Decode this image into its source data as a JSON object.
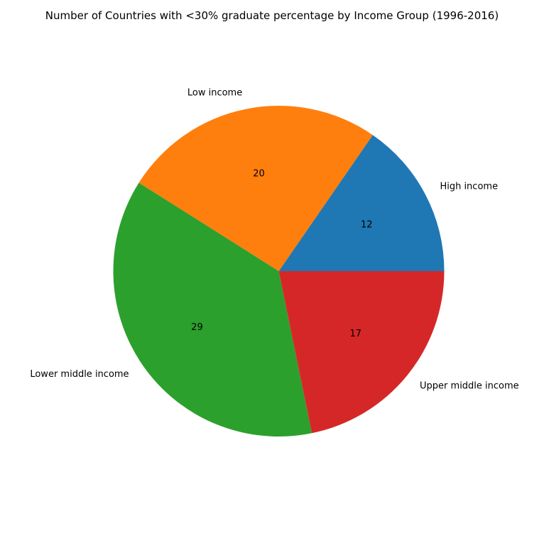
{
  "chart_data": {
    "type": "pie",
    "title": "Number of Countries with <30% graduate percentage by Income Group (1996-2016)",
    "categories": [
      "High income",
      "Low income",
      "Lower middle income",
      "Upper middle income"
    ],
    "values": [
      12,
      20,
      29,
      17
    ],
    "value_labels": [
      "12",
      "20",
      "29",
      "17"
    ],
    "colors": [
      "#1f77b4",
      "#ff7f0e",
      "#2ca02c",
      "#d62728"
    ],
    "start_angle_deg": 0,
    "direction": "counterclockwise",
    "legend": "none"
  }
}
